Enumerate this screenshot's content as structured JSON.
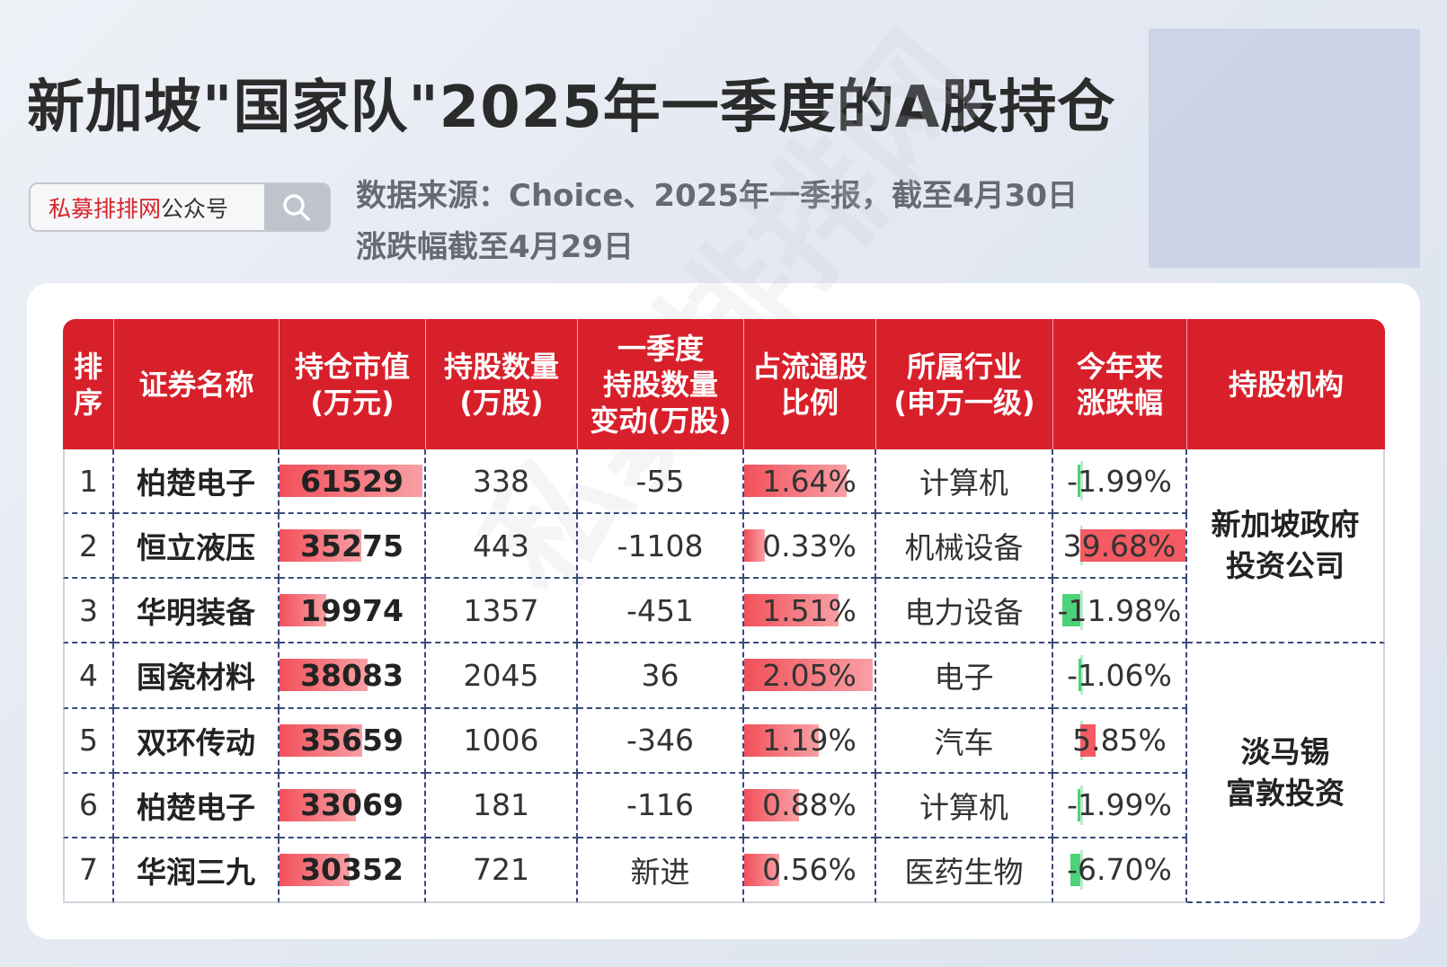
{
  "title": "新加坡\"国家队\"2025年一季度的A股持仓",
  "searchbox": {
    "brand": "私募排排网",
    "suffix": "公众号",
    "icon": "search-icon"
  },
  "source": {
    "line1": "数据来源：Choice、2025年一季报，截至4月30日",
    "line2": "涨跌幅截至4月29日"
  },
  "watermark": "私募排排网",
  "table": {
    "headers": [
      "排序",
      "证券名称",
      "持仓市值(万元)",
      "持股数量(万股)",
      "一季度持股数量变动(万股)",
      "占流通股比例",
      "所属行业(申万一级)",
      "今年来涨跌幅",
      "持股机构"
    ],
    "header_lines": [
      [
        "排",
        "序"
      ],
      [
        "证券名称"
      ],
      [
        "持仓市值",
        "(万元)"
      ],
      [
        "持股数量",
        "(万股)"
      ],
      [
        "一季度",
        "持股数量",
        "变动(万股)"
      ],
      [
        "占流通股",
        "比例"
      ],
      [
        "所属行业",
        "(申万一级)"
      ],
      [
        "今年来",
        "涨跌幅"
      ],
      [
        "持股机构"
      ]
    ],
    "rows": [
      {
        "rank": "1",
        "name": "柏楚电子",
        "market_value": "61529",
        "mv_num": 61529,
        "shares": "338",
        "change": "-55",
        "ratio": "1.64%",
        "ratio_num": 1.64,
        "industry": "计算机",
        "ytd": "-1.99%",
        "ytd_num": -1.99
      },
      {
        "rank": "2",
        "name": "恒立液压",
        "market_value": "35275",
        "mv_num": 35275,
        "shares": "443",
        "change": "-1108",
        "ratio": "0.33%",
        "ratio_num": 0.33,
        "industry": "机械设备",
        "ytd": "39.68%",
        "ytd_num": 39.68
      },
      {
        "rank": "3",
        "name": "华明装备",
        "market_value": "19974",
        "mv_num": 19974,
        "shares": "1357",
        "change": "-451",
        "ratio": "1.51%",
        "ratio_num": 1.51,
        "industry": "电力设备",
        "ytd": "-11.98%",
        "ytd_num": -11.98
      },
      {
        "rank": "4",
        "name": "国瓷材料",
        "market_value": "38083",
        "mv_num": 38083,
        "shares": "2045",
        "change": "36",
        "ratio": "2.05%",
        "ratio_num": 2.05,
        "industry": "电子",
        "ytd": "-1.06%",
        "ytd_num": -1.06
      },
      {
        "rank": "5",
        "name": "双环传动",
        "market_value": "35659",
        "mv_num": 35659,
        "shares": "1006",
        "change": "-346",
        "ratio": "1.19%",
        "ratio_num": 1.19,
        "industry": "汽车",
        "ytd": "5.85%",
        "ytd_num": 5.85
      },
      {
        "rank": "6",
        "name": "柏楚电子",
        "market_value": "33069",
        "mv_num": 33069,
        "shares": "181",
        "change": "-116",
        "ratio": "0.88%",
        "ratio_num": 0.88,
        "industry": "计算机",
        "ytd": "-1.99%",
        "ytd_num": -1.99
      },
      {
        "rank": "7",
        "name": "华润三九",
        "market_value": "30352",
        "mv_num": 30352,
        "shares": "721",
        "change": "新进",
        "ratio": "0.56%",
        "ratio_num": 0.56,
        "industry": "医药生物",
        "ytd": "-6.70%",
        "ytd_num": -6.7
      }
    ],
    "institutions": [
      {
        "lines": [
          "新加坡政府",
          "投资公司"
        ],
        "rowspan": 3
      },
      {
        "lines": [
          "淡马锡",
          "富敦投资"
        ],
        "rowspan": 4
      }
    ],
    "colors": {
      "header_bg": "#d8202b",
      "bar_red": "#f35a62",
      "bar_green": "#4cd27a"
    }
  }
}
